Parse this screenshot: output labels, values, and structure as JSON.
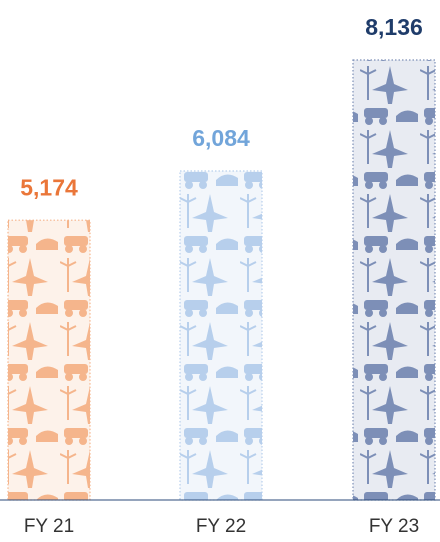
{
  "chart_data": {
    "type": "bar",
    "categories": [
      "FY 21",
      "FY 22",
      "FY 23"
    ],
    "values": [
      5174,
      6084,
      8136
    ],
    "value_labels": [
      "5,174",
      "6,084",
      "8,136"
    ],
    "colors": [
      "#f5b58c",
      "#b7cfec",
      "#7d8fb7"
    ],
    "label_colors": [
      "#ea7639",
      "#72a5da",
      "#1f3c6a"
    ]
  }
}
